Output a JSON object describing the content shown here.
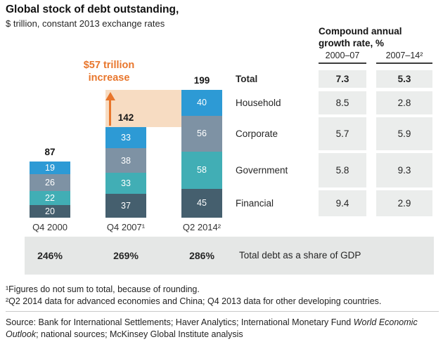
{
  "header": {
    "title": "Global stock of debt outstanding,",
    "subtitle": "$ trillion, constant 2013 exchange rates"
  },
  "chart_data": {
    "type": "bar",
    "stacked": true,
    "unit": "$ trillion, constant 2013 exchange rates",
    "categories": [
      "Q4 2000",
      "Q4 2007¹",
      "Q2 2014²"
    ],
    "totals": [
      "87",
      "142",
      "199"
    ],
    "total_label": "Total",
    "series": [
      {
        "name": "Household",
        "color": "#2d9ad5",
        "values": [
          19,
          33,
          40
        ]
      },
      {
        "name": "Corporate",
        "color": "#7e92a4",
        "values": [
          26,
          38,
          56
        ]
      },
      {
        "name": "Government",
        "color": "#41aeb5",
        "values": [
          22,
          33,
          58
        ]
      },
      {
        "name": "Financial",
        "color": "#455f6e",
        "values": [
          20,
          37,
          45
        ]
      }
    ],
    "annotation": {
      "line1": "$57 trillion",
      "line2": "increase",
      "color": "#e8762c",
      "band_color": "#f7dcc2"
    },
    "gdp_band": {
      "values": [
        "246%",
        "269%",
        "286%"
      ],
      "label": "Total debt as a share of GDP"
    }
  },
  "growth_table": {
    "title": "Compound annual growth rate, %",
    "columns": [
      "2000–07",
      "2007–14²"
    ],
    "rows": [
      {
        "label": "Total",
        "values": [
          "7.3",
          "5.3"
        ],
        "emphasis": true
      },
      {
        "label": "Household",
        "values": [
          "8.5",
          "2.8"
        ],
        "emphasis": false
      },
      {
        "label": "Corporate",
        "values": [
          "5.7",
          "5.9"
        ],
        "emphasis": false
      },
      {
        "label": "Government",
        "values": [
          "5.8",
          "9.3"
        ],
        "emphasis": false
      },
      {
        "label": "Financial",
        "values": [
          "9.4",
          "2.9"
        ],
        "emphasis": false
      }
    ]
  },
  "footnotes": [
    "¹Figures do not sum to total, because of rounding.",
    "²Q2 2014 data for advanced economies and China; Q4 2013 data for other developing countries."
  ],
  "source": {
    "prefix": "Source: Bank for International Settlements; Haver Analytics; International Monetary Fund ",
    "italic": "World Economic Outlook",
    "suffix": "; national sources; McKinsey Global Institute analysis"
  }
}
